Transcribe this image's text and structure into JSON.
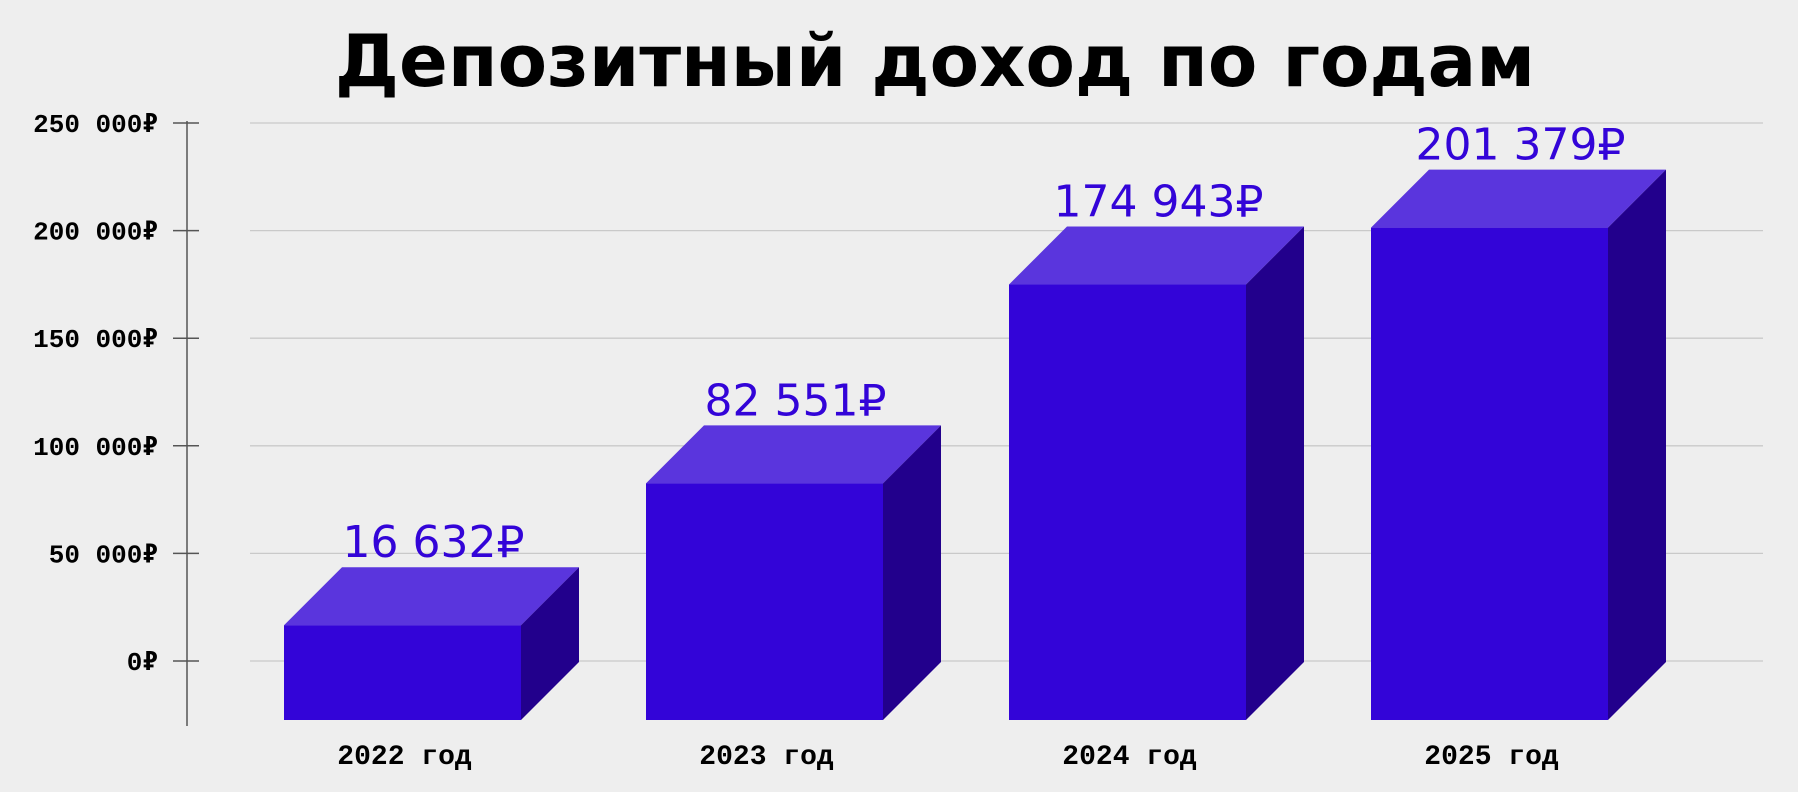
{
  "chart_data": {
    "type": "bar",
    "title": "Депозитный доход по годам",
    "categories": [
      "2022 год",
      "2023 год",
      "2024 год",
      "2025 год"
    ],
    "values": [
      16632,
      82551,
      174943,
      201379
    ],
    "value_labels": [
      "16 632₽",
      "82 551₽",
      "174 943₽",
      "201 379₽"
    ],
    "y_ticks": [
      0,
      50000,
      100000,
      150000,
      200000,
      250000
    ],
    "y_tick_labels": [
      "0₽",
      "50 000₽",
      "100 000₽",
      "150 000₽",
      "200 000₽",
      "250 000₽"
    ],
    "ylim": [
      -27000,
      250000
    ],
    "grid": true,
    "style": "3d",
    "colors": {
      "front": "#3304d8",
      "top": "#5a35dd",
      "side": "#22008c",
      "label": "#3304d8"
    }
  }
}
